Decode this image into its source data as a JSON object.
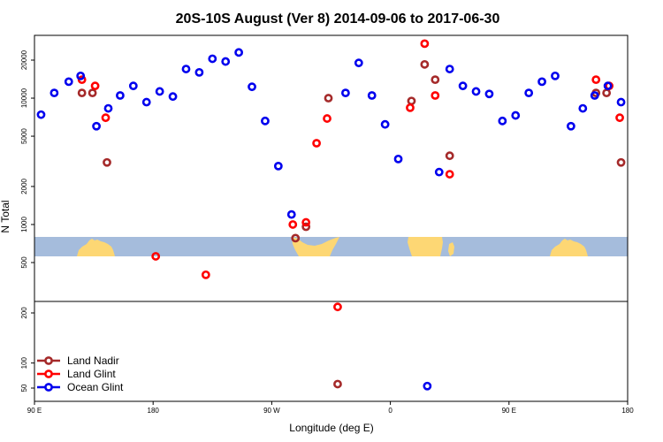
{
  "chart_data": {
    "type": "scatter",
    "title": "20S-10S August (Ver 8)   2014-09-06 to 2017-06-30",
    "xlabel": "Longitude (deg E)",
    "ylabel": "N Total",
    "x_ticks": [
      {
        "value": 90,
        "label": "90 E"
      },
      {
        "value": 180,
        "label": "180"
      },
      {
        "value": 270,
        "label": "90 W"
      },
      {
        "value": 360,
        "label": "0"
      },
      {
        "value": 450,
        "label": "90 E"
      },
      {
        "value": 540,
        "label": "180"
      }
    ],
    "xlim": [
      90,
      540
    ],
    "upper_panel": {
      "scale": "log",
      "ylim": [
        250,
        35000
      ],
      "y_ticks": [
        500,
        1000,
        2000,
        5000,
        10000,
        20000
      ]
    },
    "lower_panel": {
      "scale": "linear",
      "ylim": [
        30,
        230
      ],
      "y_ticks": [
        50,
        100,
        200
      ]
    },
    "map_strip": {
      "ocean_color": "#a5bcdc",
      "land_color": "#fdd774"
    },
    "series": [
      {
        "name": "Land Nadir",
        "color": "#a52a2a",
        "points": [
          {
            "x": 126,
            "y": 11000
          },
          {
            "x": 134,
            "y": 11000
          },
          {
            "x": 145,
            "y": 3100
          },
          {
            "x": 288,
            "y": 780
          },
          {
            "x": 296,
            "y": 960
          },
          {
            "x": 313,
            "y": 10000
          },
          {
            "x": 376,
            "y": 9500
          },
          {
            "x": 386,
            "y": 18500
          },
          {
            "x": 394,
            "y": 14000
          },
          {
            "x": 405,
            "y": 3500
          },
          {
            "x": 516,
            "y": 11000
          },
          {
            "x": 524,
            "y": 11000
          },
          {
            "x": 535,
            "y": 3100
          },
          {
            "x": 320,
            "y": 58
          }
        ]
      },
      {
        "name": "Land Glint",
        "color": "#ff0000",
        "points": [
          {
            "x": 126,
            "y": 14000
          },
          {
            "x": 136,
            "y": 12500
          },
          {
            "x": 144,
            "y": 7000
          },
          {
            "x": 182,
            "y": 560
          },
          {
            "x": 220,
            "y": 400
          },
          {
            "x": 286,
            "y": 1000
          },
          {
            "x": 296,
            "y": 1040
          },
          {
            "x": 304,
            "y": 4400
          },
          {
            "x": 312,
            "y": 6900
          },
          {
            "x": 375,
            "y": 8400
          },
          {
            "x": 386,
            "y": 27000
          },
          {
            "x": 394,
            "y": 10500
          },
          {
            "x": 405,
            "y": 2500
          },
          {
            "x": 516,
            "y": 14000
          },
          {
            "x": 526,
            "y": 12500
          },
          {
            "x": 534,
            "y": 7000
          },
          {
            "x": 320,
            "y": 212
          }
        ]
      },
      {
        "name": "Ocean Glint",
        "color": "#0000ee",
        "points": [
          {
            "x": 95,
            "y": 7400
          },
          {
            "x": 105,
            "y": 11000
          },
          {
            "x": 116,
            "y": 13500
          },
          {
            "x": 125,
            "y": 15000
          },
          {
            "x": 137,
            "y": 6000
          },
          {
            "x": 146,
            "y": 8300
          },
          {
            "x": 155,
            "y": 10500
          },
          {
            "x": 165,
            "y": 12500
          },
          {
            "x": 175,
            "y": 9300
          },
          {
            "x": 185,
            "y": 11300
          },
          {
            "x": 195,
            "y": 10300
          },
          {
            "x": 205,
            "y": 17000
          },
          {
            "x": 215,
            "y": 16000
          },
          {
            "x": 225,
            "y": 20500
          },
          {
            "x": 235,
            "y": 19500
          },
          {
            "x": 245,
            "y": 23000
          },
          {
            "x": 255,
            "y": 12300
          },
          {
            "x": 265,
            "y": 6600
          },
          {
            "x": 275,
            "y": 2900
          },
          {
            "x": 285,
            "y": 1200
          },
          {
            "x": 326,
            "y": 11000
          },
          {
            "x": 336,
            "y": 19000
          },
          {
            "x": 346,
            "y": 10500
          },
          {
            "x": 356,
            "y": 6200
          },
          {
            "x": 366,
            "y": 3300
          },
          {
            "x": 397,
            "y": 2600
          },
          {
            "x": 405,
            "y": 17000
          },
          {
            "x": 415,
            "y": 12500
          },
          {
            "x": 425,
            "y": 11300
          },
          {
            "x": 435,
            "y": 10800
          },
          {
            "x": 445,
            "y": 6600
          },
          {
            "x": 455,
            "y": 7300
          },
          {
            "x": 465,
            "y": 11000
          },
          {
            "x": 475,
            "y": 13500
          },
          {
            "x": 485,
            "y": 15000
          },
          {
            "x": 497,
            "y": 6000
          },
          {
            "x": 506,
            "y": 8300
          },
          {
            "x": 515,
            "y": 10500
          },
          {
            "x": 525,
            "y": 12500
          },
          {
            "x": 535,
            "y": 9300
          },
          {
            "x": 388,
            "y": 54
          }
        ]
      }
    ],
    "legend": {
      "position": "bottom-left",
      "entries": [
        "Land Nadir",
        "Land Glint",
        "Ocean Glint"
      ]
    }
  }
}
